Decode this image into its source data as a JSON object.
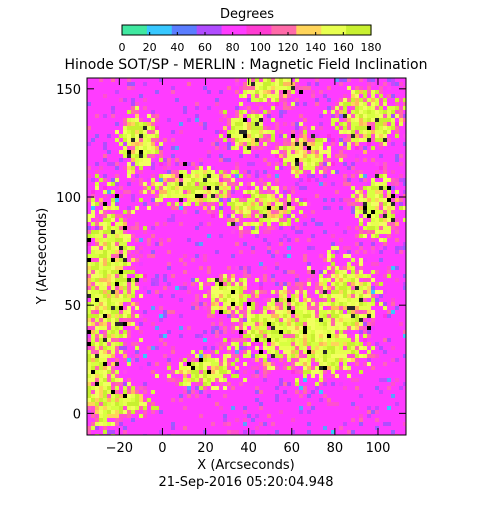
{
  "colorbar": {
    "label": "Degrees",
    "min": 0,
    "max": 180,
    "ticks": [
      "0",
      "20",
      "40",
      "60",
      "80",
      "100",
      "120",
      "140",
      "160",
      "180"
    ],
    "colors": [
      "#40e8a0",
      "#38c8ff",
      "#5a7dff",
      "#b04cff",
      "#ff3cff",
      "#ff3cd2",
      "#ff6aa8",
      "#ffd45a",
      "#e8ff50",
      "#c8f030"
    ]
  },
  "chart_data": {
    "type": "heatmap",
    "title": "Hinode SOT/SP - MERLIN : Magnetic Field Inclination",
    "xlabel": "X (Arcseconds)",
    "ylabel": "Y (Arcseconds)",
    "xlim": [
      -35,
      113
    ],
    "ylim": [
      -10,
      155
    ],
    "xticks": [
      -20,
      0,
      20,
      40,
      60,
      80,
      100
    ],
    "yticks": [
      0,
      50,
      100,
      150
    ],
    "value_range": [
      0,
      180
    ],
    "value_unit": "Degrees",
    "grid": false,
    "dominant_values": [
      {
        "range": [
          85,
          115
        ],
        "color": "#ff3cff"
      },
      {
        "range": [
          140,
          170
        ],
        "color": "#d8ff40"
      },
      {
        "range": [
          40,
          70
        ],
        "color": "#38c8ff"
      }
    ]
  },
  "footer": {
    "timestamp": "21-Sep-2016 05:20:04.948"
  }
}
